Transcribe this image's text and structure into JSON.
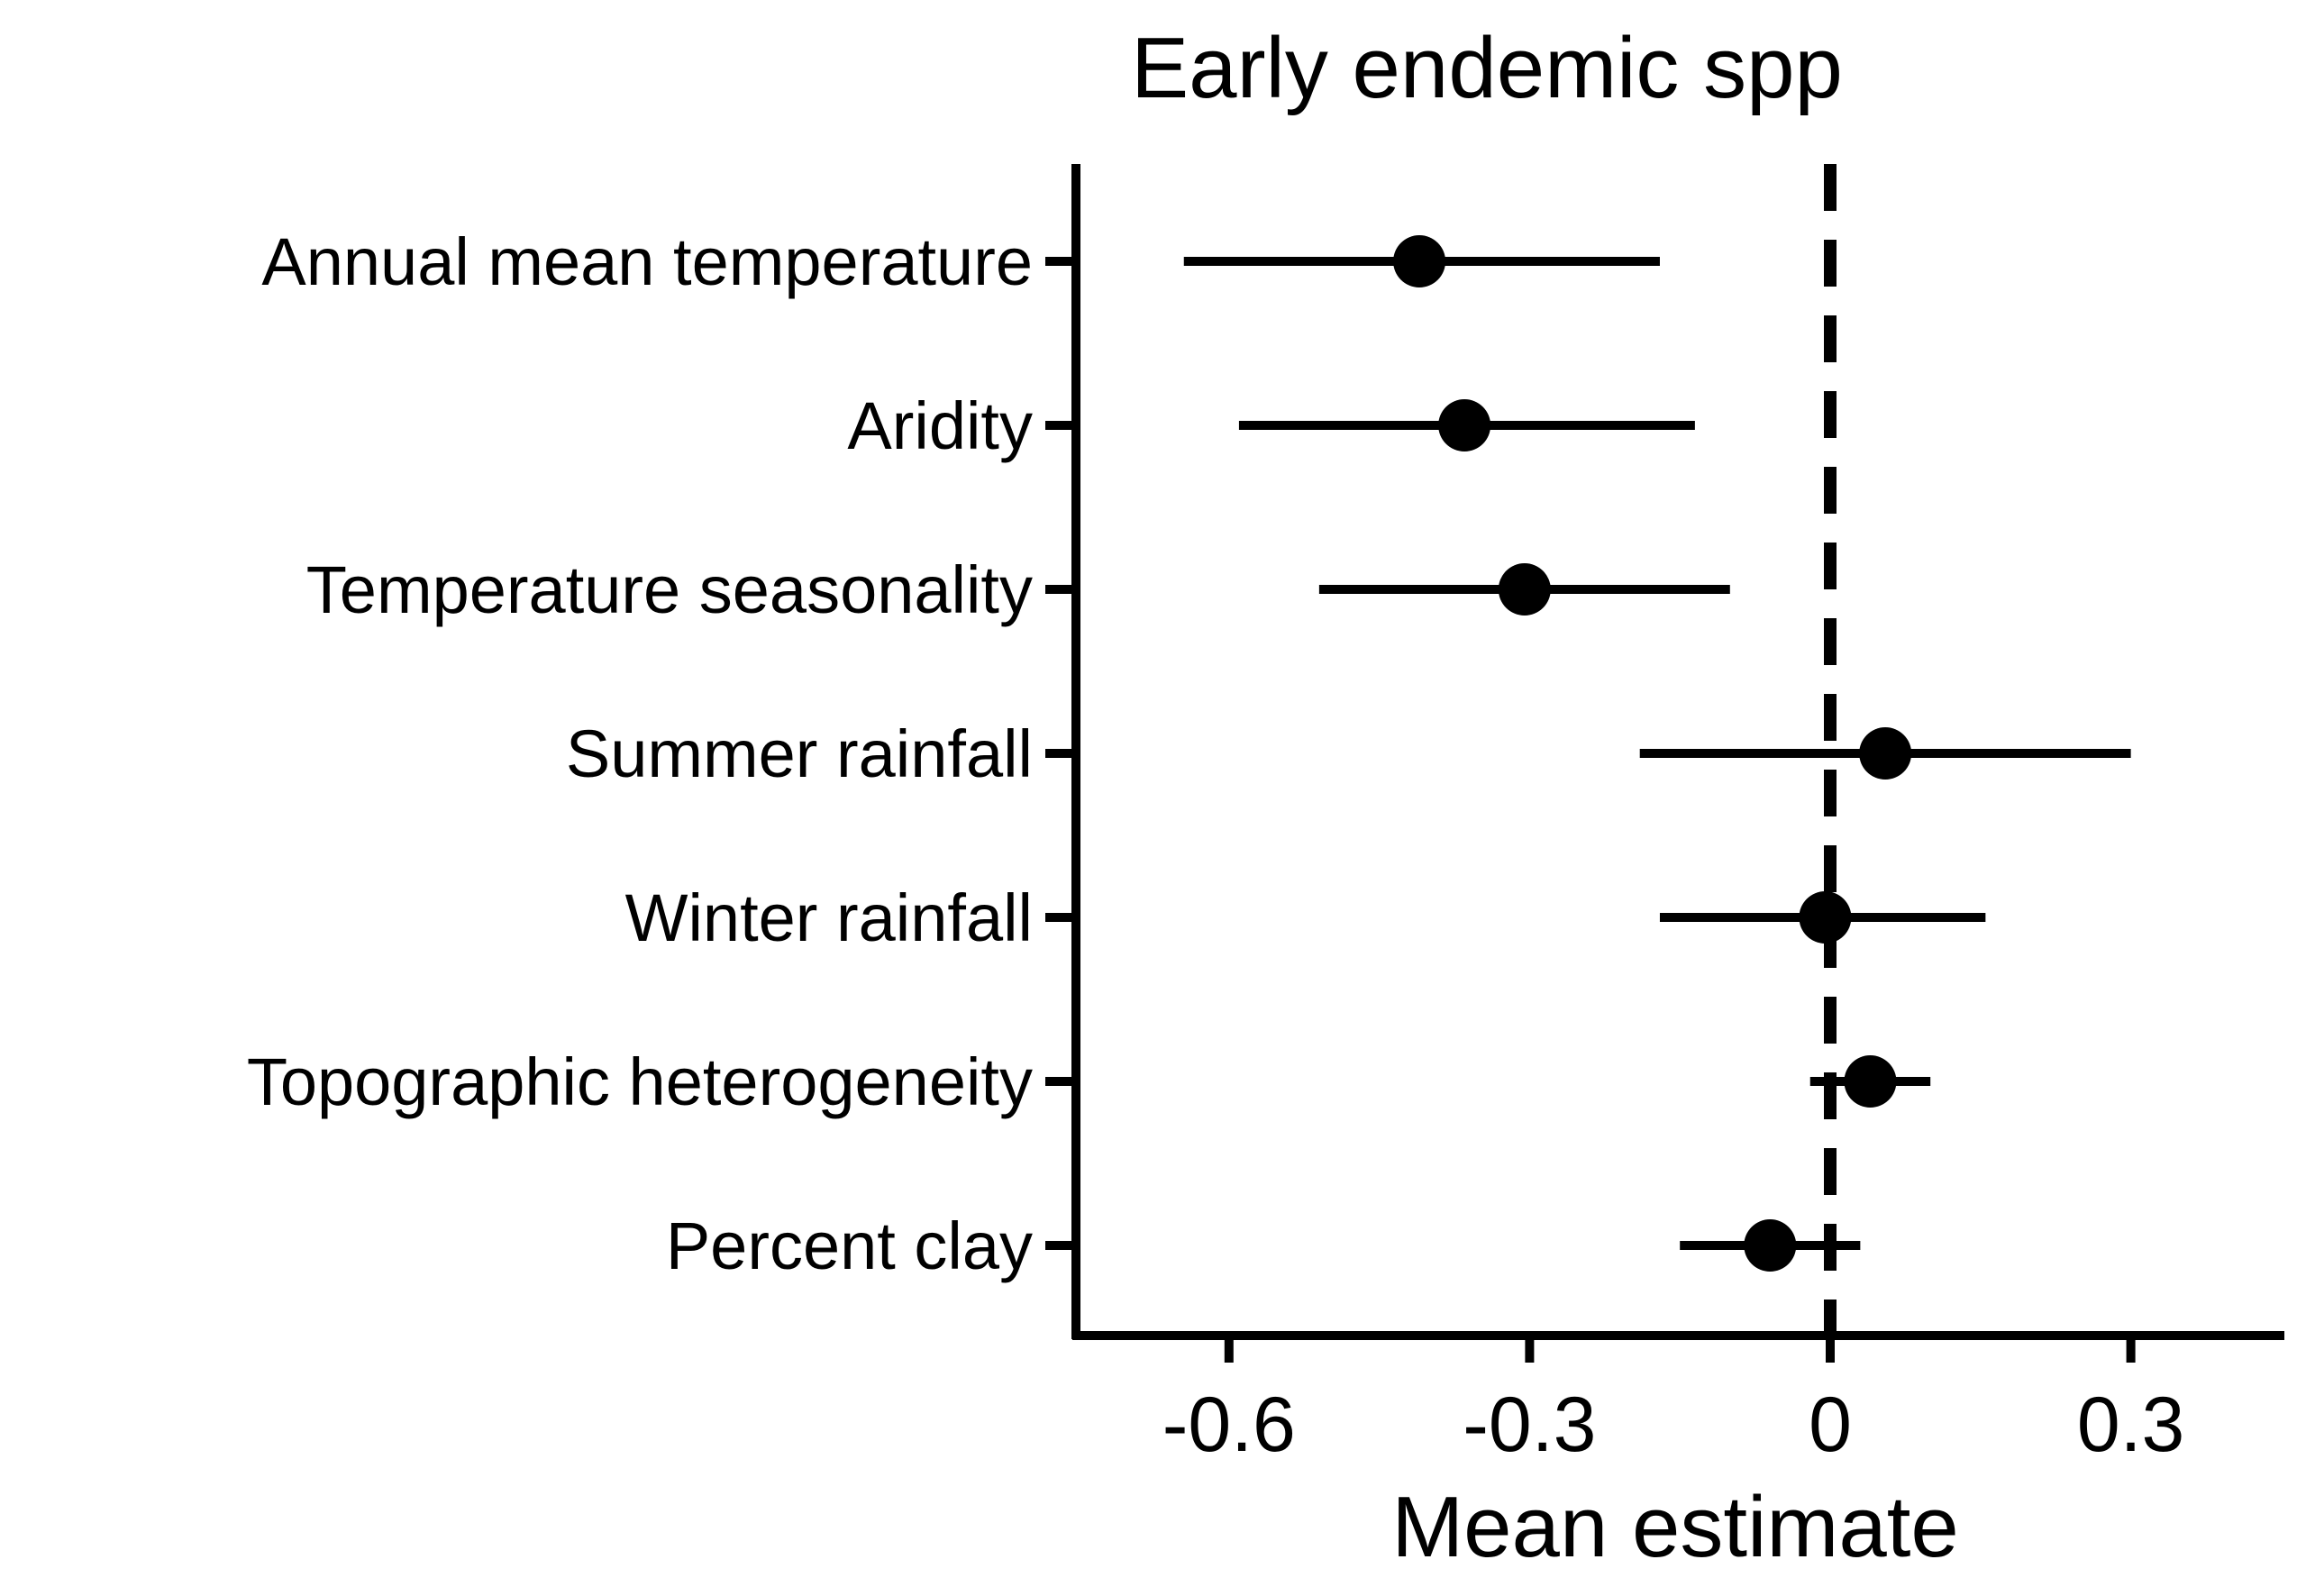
{
  "chart_data": {
    "type": "forest",
    "title": "Early endemic spp",
    "xlabel": "Mean estimate",
    "ylabel": "",
    "xlim": [
      -0.75,
      0.45
    ],
    "xticks": [
      -0.6,
      -0.3,
      0,
      0.3
    ],
    "xtick_labels": [
      "-0.6",
      "-0.3",
      "0",
      "0.3"
    ],
    "reference_line": 0,
    "grid": false,
    "categories": [
      "Annual mean temperature",
      "Aridity",
      "Temperature seasonality",
      "Summer rainfall",
      "Winter rainfall",
      "Topographic heterogeneity",
      "Percent clay"
    ],
    "estimates": [
      -0.41,
      -0.365,
      -0.305,
      0.055,
      -0.005,
      0.04,
      -0.06
    ],
    "lower": [
      -0.645,
      -0.59,
      -0.51,
      -0.19,
      -0.17,
      -0.02,
      -0.15
    ],
    "upper": [
      -0.17,
      -0.135,
      -0.1,
      0.3,
      0.155,
      0.1,
      0.03
    ],
    "color": "#000000"
  }
}
